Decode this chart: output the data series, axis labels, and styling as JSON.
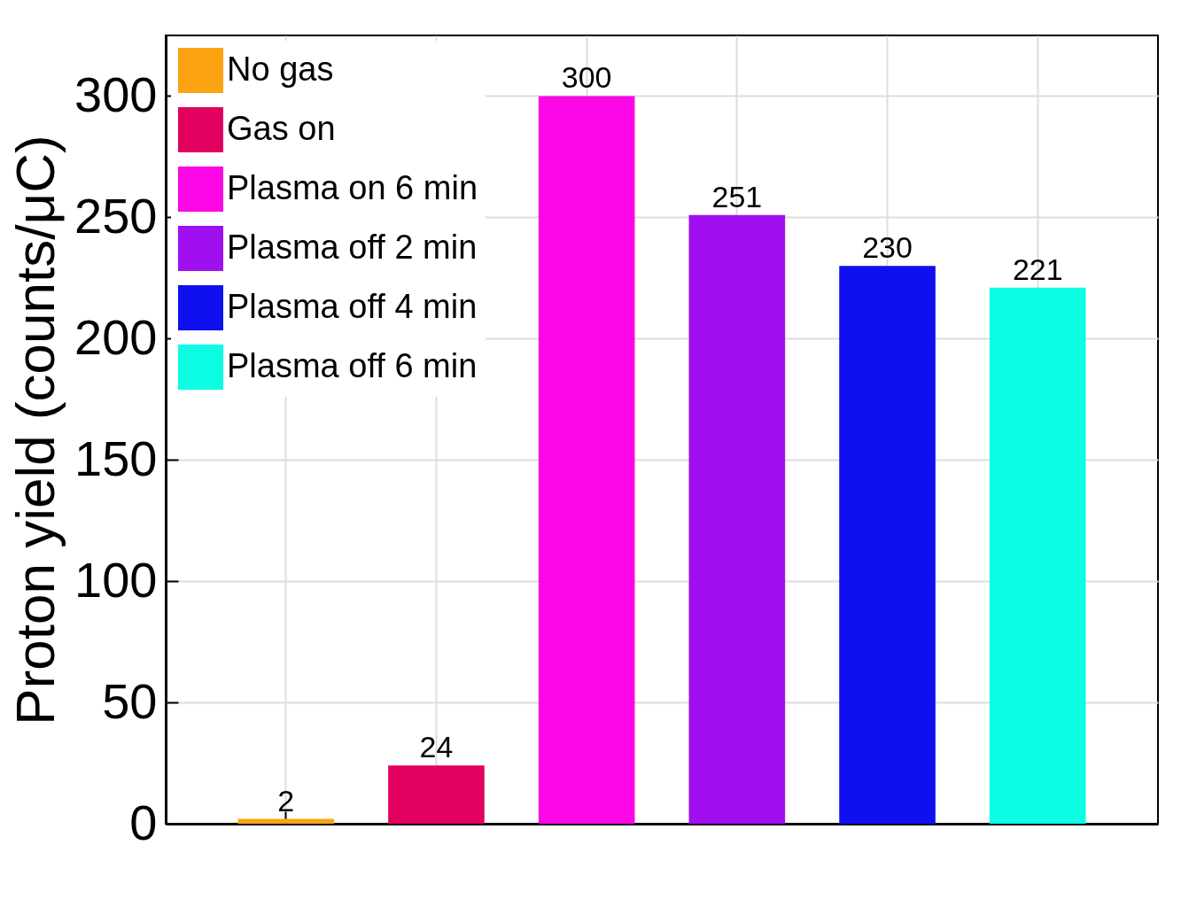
{
  "chart_data": {
    "type": "bar",
    "ylabel": "Proton yield (counts/μC)",
    "categories": [
      null,
      null,
      null,
      null,
      null,
      null
    ],
    "series": [
      {
        "name": "No gas",
        "color": "#fca311",
        "values": [
          2,
          null,
          null,
          null,
          null,
          null
        ]
      },
      {
        "name": "Gas on",
        "color": "#e2005f",
        "values": [
          null,
          24,
          null,
          null,
          null,
          null
        ]
      },
      {
        "name": "Plasma on 6 min",
        "color": "#fc08e6",
        "values": [
          null,
          null,
          300,
          null,
          null,
          null
        ]
      },
      {
        "name": "Plasma off 2 min",
        "color": "#a00ff0",
        "values": [
          null,
          null,
          null,
          251,
          null,
          null
        ]
      },
      {
        "name": "Plasma off 4 min",
        "color": "#0f0fef",
        "values": [
          null,
          null,
          null,
          null,
          230,
          null
        ]
      },
      {
        "name": "Plasma off 6 min",
        "color": "#0cfce4",
        "values": [
          null,
          null,
          null,
          null,
          null,
          221
        ]
      }
    ],
    "ylim": [
      0,
      325
    ],
    "yticks": [
      0,
      50,
      100,
      150,
      200,
      250,
      300
    ],
    "grid": true,
    "legend": "top left",
    "data_labels": true
  }
}
